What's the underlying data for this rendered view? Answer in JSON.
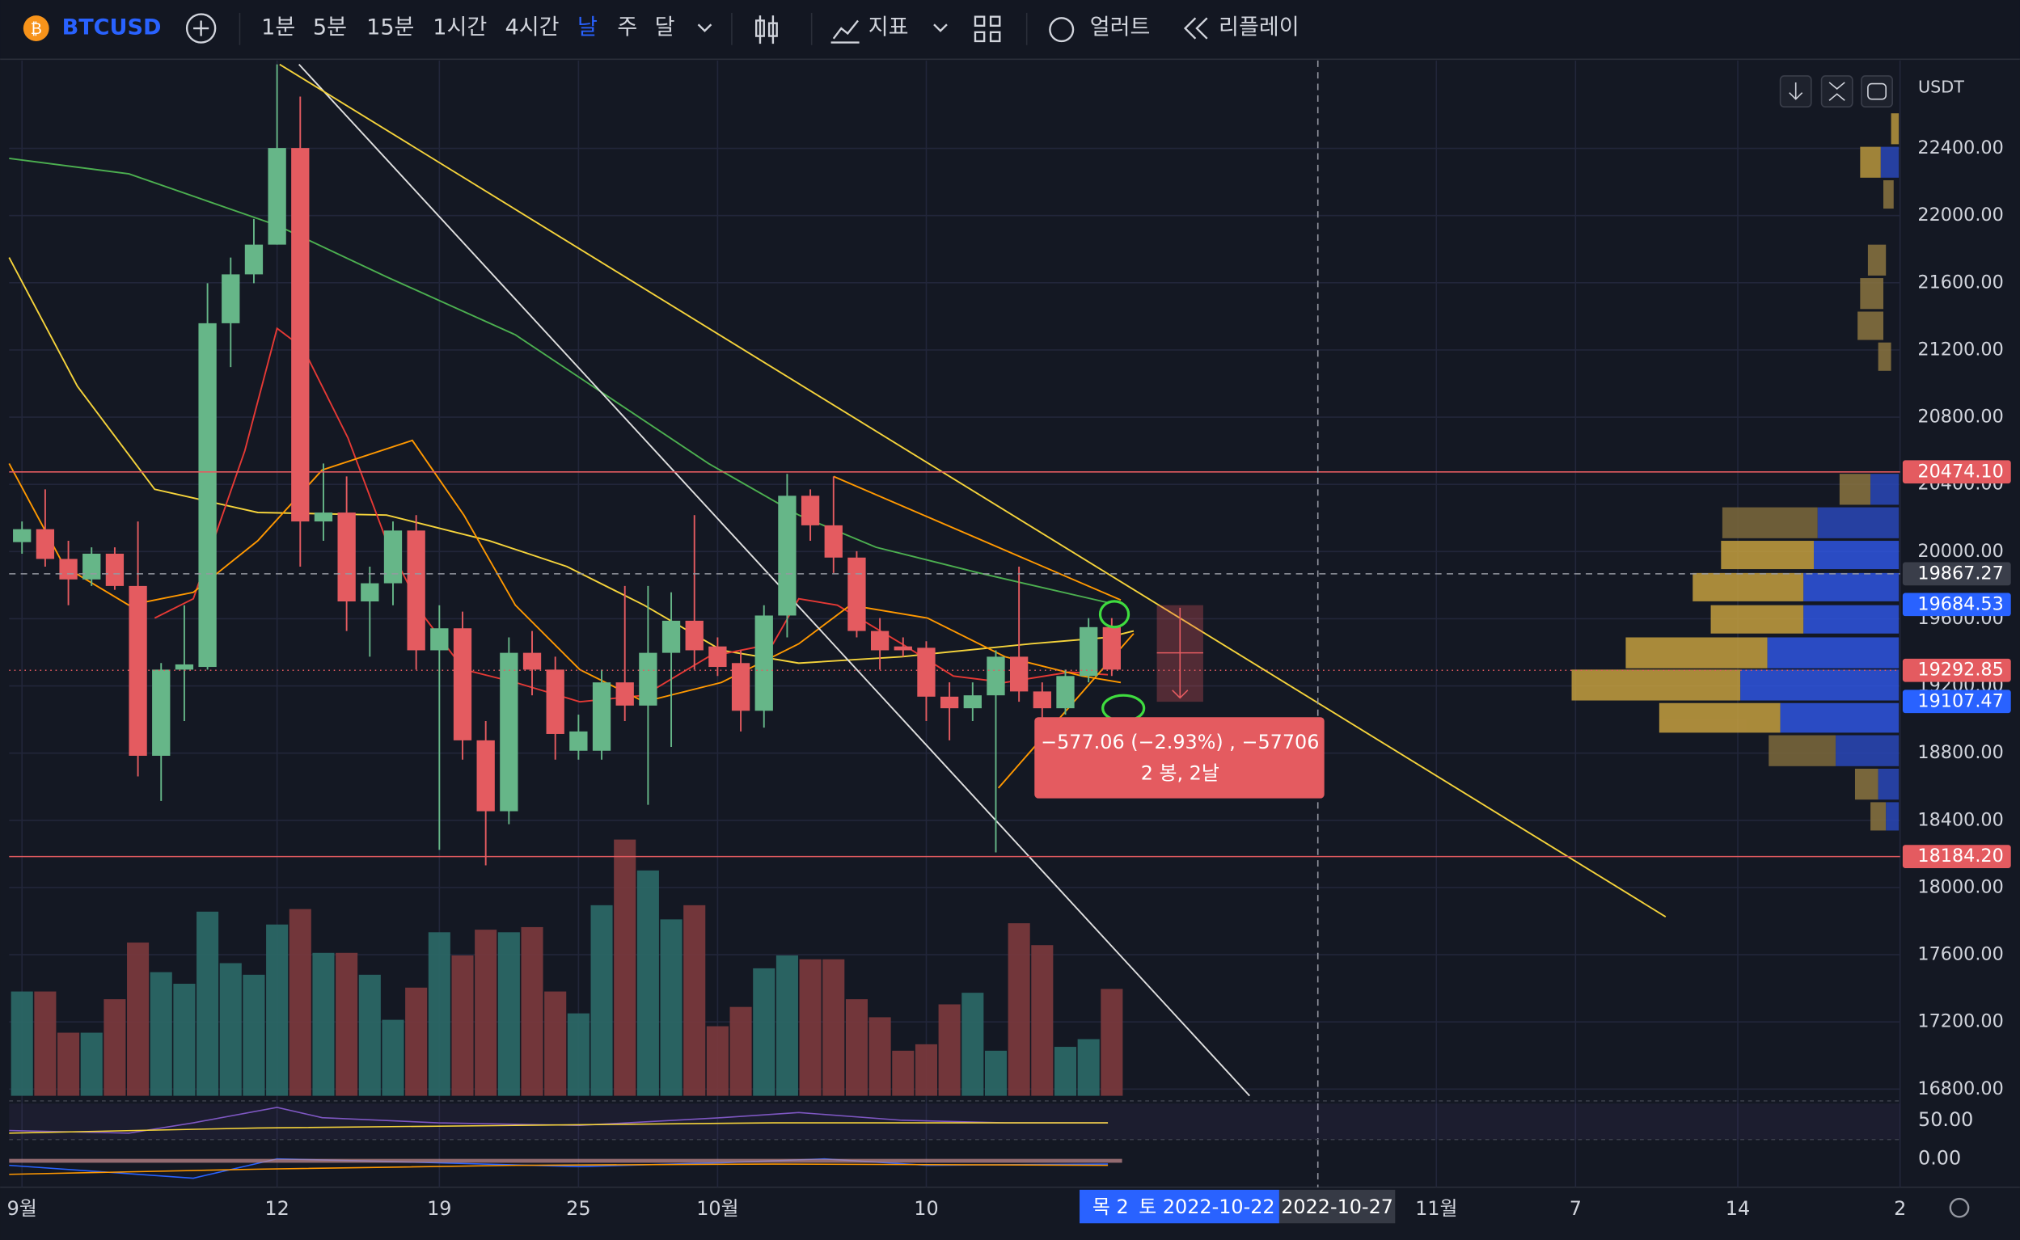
{
  "toolbar": {
    "symbol": "BTCUSD",
    "intervals": [
      "1분",
      "5분",
      "15분",
      "1시간",
      "4시간",
      "날",
      "주",
      "달"
    ],
    "active": 5,
    "indicators": "지표",
    "alert": "얼러트",
    "replay": "리플레이"
  },
  "chart": {
    "type": "candlestick",
    "currency": "USDT",
    "ylim": [
      16760,
      22900
    ],
    "yticks": [
      {
        "value": 22400,
        "label": "22400.00"
      },
      {
        "value": 22000,
        "label": "22000.00"
      },
      {
        "value": 21600,
        "label": "21600.00"
      },
      {
        "value": 21200,
        "label": "21200.00"
      },
      {
        "value": 20800,
        "label": "20800.00"
      },
      {
        "value": 20400,
        "label": "20400.00"
      },
      {
        "value": 20000,
        "label": "20000.00"
      },
      {
        "value": 19600,
        "label": "19600.00"
      },
      {
        "value": 19200,
        "label": "19200.00"
      },
      {
        "value": 18800,
        "label": "18800.00"
      },
      {
        "value": 18400,
        "label": "18400.00"
      },
      {
        "value": 18000,
        "label": "18000.00"
      },
      {
        "value": 17600,
        "label": "17600.00"
      },
      {
        "value": 17200,
        "label": "17200.00"
      },
      {
        "value": 16800,
        "label": "16800.00"
      }
    ],
    "xticks": [
      {
        "value": 0,
        "label": "9월"
      },
      {
        "value": 11,
        "label": "12"
      },
      {
        "value": 18,
        "label": "19"
      },
      {
        "value": 24,
        "label": "25"
      },
      {
        "value": 30,
        "label": "10월"
      },
      {
        "value": 39,
        "label": "10"
      },
      {
        "value": 61,
        "label": "11월"
      },
      {
        "value": 67,
        "label": "7"
      },
      {
        "value": 74,
        "label": "14"
      },
      {
        "value": 81,
        "label": "2"
      }
    ],
    "up_color": "#66b688",
    "down_color": "#e45b60",
    "candles": [
      [
        20056,
        20179,
        19987,
        20133
      ],
      [
        20133,
        20370,
        19910,
        19956
      ],
      [
        19956,
        20064,
        19680,
        19834
      ],
      [
        19834,
        20025,
        19795,
        19987
      ],
      [
        19987,
        20025,
        19772,
        19795
      ],
      [
        19795,
        20179,
        18661,
        18784
      ],
      [
        18784,
        19336,
        18515,
        19297
      ],
      [
        19297,
        19680,
        18991,
        19328
      ],
      [
        19313,
        21597,
        19297,
        21359
      ],
      [
        21359,
        21750,
        21098,
        21650
      ],
      [
        21650,
        21980,
        21597,
        21827
      ],
      [
        21827,
        22900,
        21827,
        22402
      ],
      [
        22402,
        22708,
        19910,
        20179
      ],
      [
        20179,
        20524,
        20064,
        20232
      ],
      [
        20232,
        20447,
        19527,
        19703
      ],
      [
        19703,
        19910,
        19374,
        19811
      ],
      [
        19811,
        20179,
        19680,
        20125
      ],
      [
        20125,
        20217,
        19297,
        19412
      ],
      [
        19412,
        19680,
        18224,
        19543
      ],
      [
        19543,
        19642,
        18761,
        18876
      ],
      [
        18876,
        18991,
        18132,
        18454
      ],
      [
        18454,
        19489,
        18377,
        19397
      ],
      [
        19397,
        19527,
        19144,
        19297
      ],
      [
        19297,
        19374,
        18761,
        18914
      ],
      [
        18814,
        19029,
        18761,
        18929
      ],
      [
        18814,
        19297,
        18761,
        19221
      ],
      [
        19221,
        19795,
        18991,
        19083
      ],
      [
        19083,
        19795,
        18492,
        19397
      ],
      [
        19397,
        19757,
        18837,
        19588
      ],
      [
        19588,
        20217,
        19297,
        19412
      ],
      [
        19435,
        19489,
        19259,
        19313
      ],
      [
        19336,
        19412,
        18929,
        19052
      ],
      [
        19052,
        19680,
        18952,
        19619
      ],
      [
        19619,
        20462,
        19489,
        20332
      ],
      [
        20332,
        20370,
        20064,
        20156
      ],
      [
        20156,
        20447,
        19872,
        19964
      ],
      [
        19964,
        20002,
        19489,
        19527
      ],
      [
        19527,
        19604,
        19297,
        19412
      ],
      [
        19435,
        19489,
        19374,
        19412
      ],
      [
        19427,
        19466,
        18991,
        19136
      ],
      [
        19136,
        19221,
        18876,
        19067
      ],
      [
        19067,
        19221,
        18991,
        19144
      ],
      [
        19144,
        19412,
        18209,
        19374
      ],
      [
        19374,
        19910,
        19106,
        19167
      ],
      [
        19167,
        19221,
        19006,
        19067
      ],
      [
        19067,
        19297,
        19029,
        19259
      ],
      [
        19259,
        19604,
        19221,
        19550
      ],
      [
        19550,
        19604,
        19259,
        19297
      ]
    ],
    "volume": [
      81,
      81,
      49,
      49,
      75,
      119,
      96,
      87,
      143,
      103,
      94,
      133,
      145,
      111,
      111,
      94,
      59,
      84,
      127,
      109,
      129,
      127,
      131,
      81,
      64,
      148,
      199,
      175,
      137,
      148,
      54,
      69,
      99,
      109,
      106,
      106,
      75,
      61,
      35,
      40,
      71,
      80,
      35,
      134,
      117,
      38,
      44,
      83
    ],
    "price_tags": [
      {
        "value": 20474.1,
        "label": "20474.10",
        "color": "#e45b60",
        "line": "solid"
      },
      {
        "value": 19867.27,
        "label": "19867.27",
        "color": "#3a3e4a",
        "line": "dashed"
      },
      {
        "value": 19684.53,
        "label": "19684.53",
        "color": "#2962ff",
        "line": "none"
      },
      {
        "value": 19292.85,
        "label": "19292.85",
        "color": "#e45b60",
        "line": "dotted"
      },
      {
        "value": 19107.47,
        "label": "19107.47",
        "color": "#2962ff",
        "line": "none"
      },
      {
        "value": 18184.2,
        "label": "18184.20",
        "color": "#e45b60",
        "line": "solid"
      }
    ],
    "osc_labels": [
      "50.00",
      "0.00"
    ],
    "crosshair": {
      "day": "목 2",
      "date": "토 2022-10-22",
      "end_date": "2022-10-27"
    },
    "measure": {
      "line1": "−577.06 (−2.93%) , −57706",
      "line2": "2 봉, 2날"
    }
  }
}
